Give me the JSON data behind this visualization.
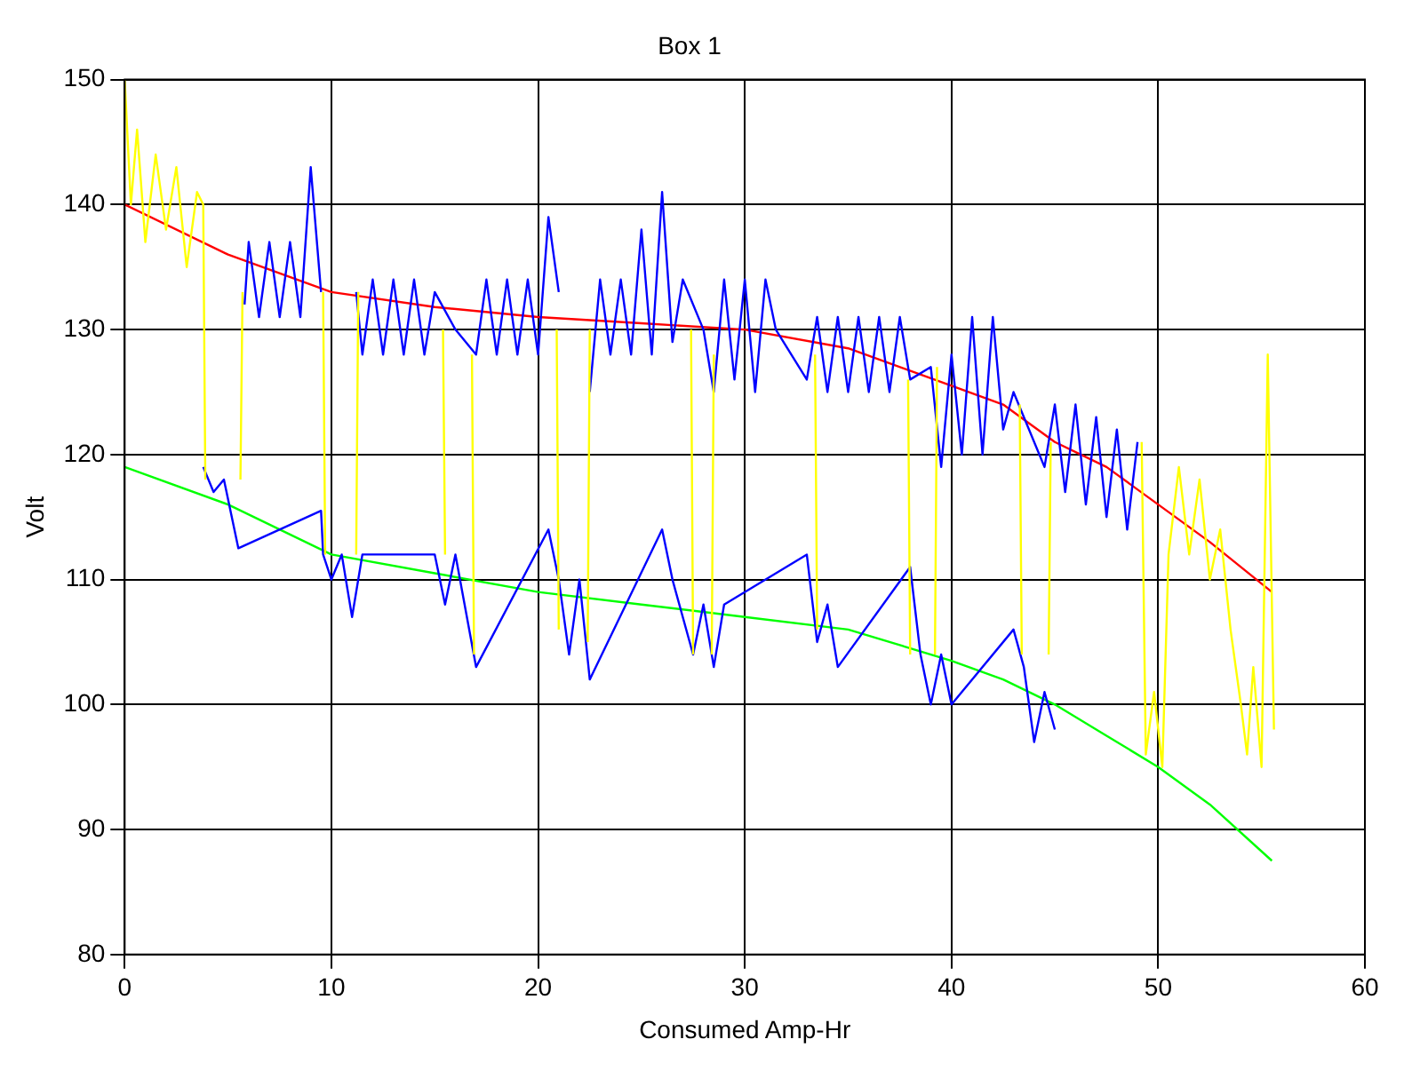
{
  "chart_data": {
    "type": "line",
    "title": "Box 1",
    "xlabel": "Consumed Amp-Hr",
    "ylabel": "Volt",
    "xlim": [
      0,
      60
    ],
    "xticks": [
      0,
      10,
      20,
      30,
      40,
      50,
      60
    ],
    "ylim": [
      80,
      150
    ],
    "yticks": [
      80,
      90,
      100,
      110,
      120,
      130,
      140,
      150
    ],
    "grid": true,
    "legend": false,
    "series": [
      {
        "color": "#ffff00",
        "x": [
          0,
          0.3,
          0.6,
          1,
          1.5,
          2,
          2.5,
          3,
          3.5,
          3.8,
          3.9,
          null,
          5.6,
          5.7,
          null,
          9.6,
          9.7,
          null,
          11.2,
          11.3,
          null,
          15.4,
          15.5,
          null,
          16.8,
          16.9,
          null,
          20.9,
          21,
          null,
          22.4,
          22.5,
          null,
          27.4,
          27.5,
          null,
          28.4,
          28.5,
          null,
          33.4,
          33.5,
          null,
          37.9,
          38,
          null,
          39.2,
          39.3,
          null,
          43.3,
          43.4,
          null,
          44.7,
          44.8,
          null,
          49.2,
          49.4,
          49.8,
          50.2,
          50.5,
          51,
          51.5,
          52,
          52.5,
          53,
          53.5,
          54,
          54.3,
          54.6,
          55,
          55.3,
          55.6
        ],
        "values": [
          150,
          140,
          146,
          137,
          144,
          138,
          143,
          135,
          141,
          140,
          118,
          null,
          118,
          133,
          null,
          133,
          112,
          null,
          112,
          133,
          null,
          130,
          112,
          null,
          128,
          104,
          null,
          130,
          106,
          null,
          105,
          130,
          null,
          130,
          104,
          null,
          104,
          128,
          null,
          128,
          106,
          null,
          126,
          104,
          null,
          104,
          127,
          null,
          124,
          104,
          null,
          104,
          121,
          null,
          121,
          96,
          101,
          95,
          112,
          119,
          112,
          118,
          110,
          114,
          106,
          100,
          96,
          103,
          95,
          128,
          98
        ]
      },
      {
        "color": "#0000ff",
        "x": [
          3.8,
          4.3,
          4.8,
          5.5,
          9.5,
          9.6,
          10,
          10.5,
          11,
          11.5,
          15,
          15.5,
          16,
          17,
          20.5,
          21,
          21.5,
          22,
          22.5,
          26,
          26.5,
          27.5,
          28,
          28.5,
          29,
          33,
          33.5,
          34,
          34.5,
          38,
          38.5,
          39,
          39.5,
          40,
          43,
          43.5,
          44,
          44.5,
          45
        ],
        "values": [
          119,
          117,
          118,
          112.5,
          115.5,
          112,
          110,
          112,
          107,
          112,
          112,
          108,
          112,
          103,
          114,
          110,
          104,
          110,
          102,
          114,
          110,
          104,
          108,
          103,
          108,
          112,
          105,
          108,
          103,
          111,
          104,
          100,
          104,
          100,
          106,
          103,
          97,
          101,
          98
        ]
      },
      {
        "color": "#0000ff",
        "x": [
          5.8,
          6,
          6.5,
          7,
          7.5,
          8,
          8.5,
          9,
          9.5,
          null,
          11.2,
          11.5,
          12,
          12.5,
          13,
          13.5,
          14,
          14.5,
          15,
          16,
          17,
          17.5,
          18,
          18.5,
          19,
          19.5,
          20,
          20.5,
          21,
          null,
          22.5,
          23,
          23.5,
          24,
          24.5,
          25,
          25.5,
          26,
          26.5,
          27,
          28,
          28.5,
          29,
          29.5,
          30,
          30.5,
          31,
          31.5,
          33,
          33.5,
          34,
          34.5,
          35,
          35.5,
          36,
          36.5,
          37,
          37.5,
          38,
          39,
          39.5,
          40,
          40.5,
          41,
          41.5,
          42,
          42.5,
          43,
          44.5,
          45,
          45.5,
          46,
          46.5,
          47,
          47.5,
          48,
          48.5,
          49
        ],
        "values": [
          132,
          137,
          131,
          137,
          131,
          137,
          131,
          143,
          133,
          null,
          133,
          128,
          134,
          128,
          134,
          128,
          134,
          128,
          133,
          130,
          128,
          134,
          128,
          134,
          128,
          134,
          128,
          139,
          133,
          null,
          125,
          134,
          128,
          134,
          128,
          138,
          128,
          141,
          129,
          134,
          130,
          125,
          134,
          126,
          134,
          125,
          134,
          130,
          126,
          131,
          125,
          131,
          125,
          131,
          125,
          131,
          125,
          131,
          126,
          127,
          119,
          128,
          120,
          131,
          120,
          131,
          122,
          125,
          119,
          124,
          117,
          124,
          116,
          123,
          115,
          122,
          114,
          121
        ]
      },
      {
        "color": "#ff0000",
        "x": [
          0,
          5,
          10,
          15,
          20,
          25,
          30,
          35,
          40,
          42.5,
          45,
          47.5,
          50,
          52.5,
          55.5
        ],
        "values": [
          140,
          136,
          133,
          131.8,
          131,
          130.5,
          130,
          128.5,
          125.5,
          124,
          121,
          119,
          116,
          113,
          109
        ]
      },
      {
        "color": "#00ff00",
        "x": [
          0,
          5,
          10,
          15,
          20,
          25,
          30,
          35,
          40,
          42.5,
          45,
          47.5,
          50,
          52.5,
          55.5
        ],
        "values": [
          119,
          116,
          112,
          110.5,
          109,
          108,
          107,
          106,
          103.5,
          102,
          100,
          97.5,
          95,
          92,
          87.5
        ]
      }
    ]
  }
}
